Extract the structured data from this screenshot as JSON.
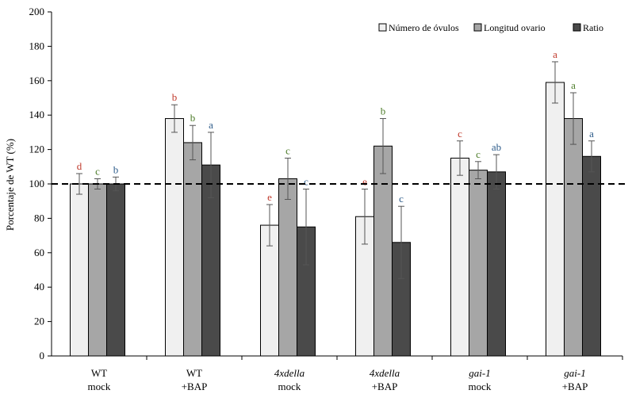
{
  "chart_data": {
    "type": "bar",
    "ylabel": "Porcentaje de WT (%)",
    "ylim": [
      0,
      200
    ],
    "yticks": [
      0,
      20,
      40,
      60,
      80,
      100,
      120,
      140,
      160,
      180,
      200
    ],
    "reference_line": 100,
    "legend_position": "top-right",
    "categories": [
      {
        "line1": "WT",
        "line2": "mock",
        "italic": false
      },
      {
        "line1": "WT",
        "line2": "+BAP",
        "italic": false
      },
      {
        "line1": "4xdella",
        "line2": "mock",
        "italic": true
      },
      {
        "line1": "4xdella",
        "line2": "+BAP",
        "italic": true
      },
      {
        "line1": "gai-1",
        "line2": "mock",
        "italic": true
      },
      {
        "line1": "gai-1",
        "line2": "+BAP",
        "italic": true
      }
    ],
    "series": [
      {
        "name": "Número de óvulos",
        "color": "#f0f0f0",
        "label_color": "#c0392b",
        "values": [
          100,
          138,
          76,
          81,
          115,
          159
        ],
        "errors": [
          6,
          8,
          12,
          16,
          10,
          12
        ],
        "labels": [
          "d",
          "b",
          "e",
          "e",
          "c",
          "a"
        ]
      },
      {
        "name": "Longitud ovario",
        "color": "#a6a6a6",
        "label_color": "#4e7d2b",
        "values": [
          100,
          124,
          103,
          122,
          108,
          138
        ],
        "errors": [
          3,
          10,
          12,
          16,
          5,
          15
        ],
        "labels": [
          "c",
          "b",
          "c",
          "b",
          "c",
          "a"
        ]
      },
      {
        "name": "Ratio",
        "color": "#4a4a4a",
        "label_color": "#2e5c8a",
        "values": [
          100,
          111,
          75,
          66,
          107,
          116
        ],
        "errors": [
          4,
          19,
          22,
          21,
          10,
          9
        ],
        "labels": [
          "b",
          "a",
          "c",
          "c",
          "ab",
          "a"
        ]
      }
    ]
  }
}
